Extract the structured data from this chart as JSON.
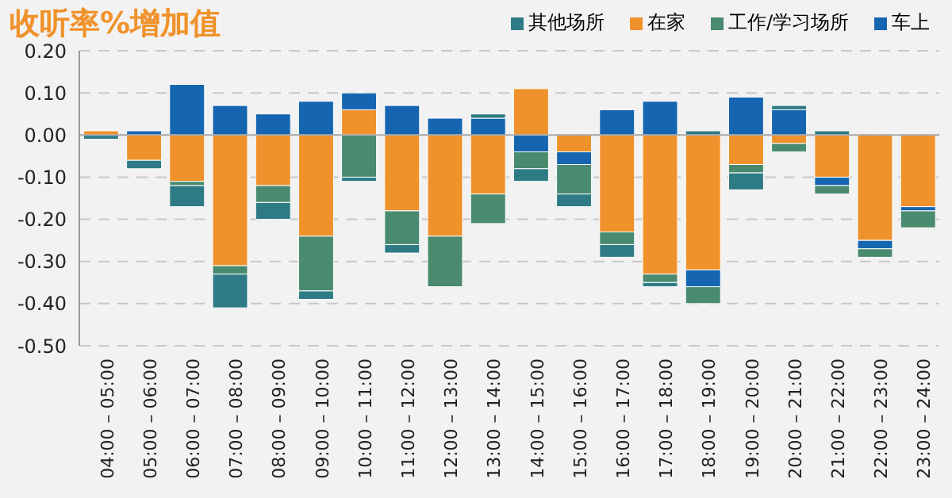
{
  "chart_data": {
    "type": "bar",
    "title": "收听率%增加值",
    "stacked": true,
    "legend": "top right",
    "grid": "y",
    "categories": [
      "04:00 – 05:00",
      "05:00 – 06:00",
      "06:00 – 07:00",
      "07:00 – 08:00",
      "08:00 – 09:00",
      "09:00 – 10:00",
      "10:00 – 11:00",
      "11:00 – 12:00",
      "12:00 – 13:00",
      "13:00 – 14:00",
      "14:00 – 15:00",
      "15:00 – 16:00",
      "16:00 – 17:00",
      "17:00 – 18:00",
      "18:00 – 19:00",
      "19:00 – 20:00",
      "20:00 – 21:00",
      "21:00 – 22:00",
      "22:00 – 23:00",
      "23:00 – 24:00"
    ],
    "ylim": [
      -0.5,
      0.2
    ],
    "yticks": [
      {
        "value": -0.5,
        "label": "-0.50"
      },
      {
        "value": -0.4,
        "label": "-0.40"
      },
      {
        "value": -0.3,
        "label": "-0.30"
      },
      {
        "value": -0.2,
        "label": "-0.20"
      },
      {
        "value": -0.1,
        "label": "-0.10"
      },
      {
        "value": 0,
        "label": "0.00"
      },
      {
        "value": 0.1,
        "label": "0.10"
      },
      {
        "value": 0.2,
        "label": "0.20"
      }
    ],
    "series": [
      {
        "name": "在家",
        "color": "#f0922b",
        "values": [
          0.01,
          -0.06,
          -0.11,
          -0.31,
          -0.12,
          -0.24,
          0.06,
          -0.18,
          -0.24,
          -0.14,
          0.11,
          -0.04,
          -0.23,
          -0.33,
          -0.32,
          -0.07,
          -0.02,
          -0.1,
          -0.25,
          -0.17
        ]
      },
      {
        "name": "车上",
        "color": "#1565b0",
        "values": [
          0,
          0.01,
          0.12,
          0.07,
          0.05,
          0.08,
          0.04,
          0.07,
          0.04,
          0.04,
          -0.04,
          -0.03,
          0.06,
          0.08,
          -0.04,
          0.09,
          0.06,
          -0.02,
          -0.02,
          -0.01
        ]
      },
      {
        "name": "工作/学习场所",
        "color": "#4a8a6e",
        "values": [
          0,
          0,
          -0.01,
          -0.02,
          -0.04,
          -0.13,
          -0.1,
          -0.08,
          -0.12,
          -0.07,
          -0.04,
          -0.07,
          -0.03,
          -0.02,
          -0.04,
          -0.02,
          -0.02,
          -0.02,
          -0.02,
          -0.04
        ]
      },
      {
        "name": "其他场所",
        "color": "#2e7b85",
        "values": [
          -0.01,
          -0.02,
          -0.05,
          -0.08,
          -0.04,
          -0.02,
          -0.01,
          -0.02,
          0,
          0.01,
          -0.03,
          -0.03,
          -0.03,
          -0.01,
          0.01,
          -0.04,
          0.01,
          0.01,
          0,
          0
        ]
      }
    ]
  }
}
